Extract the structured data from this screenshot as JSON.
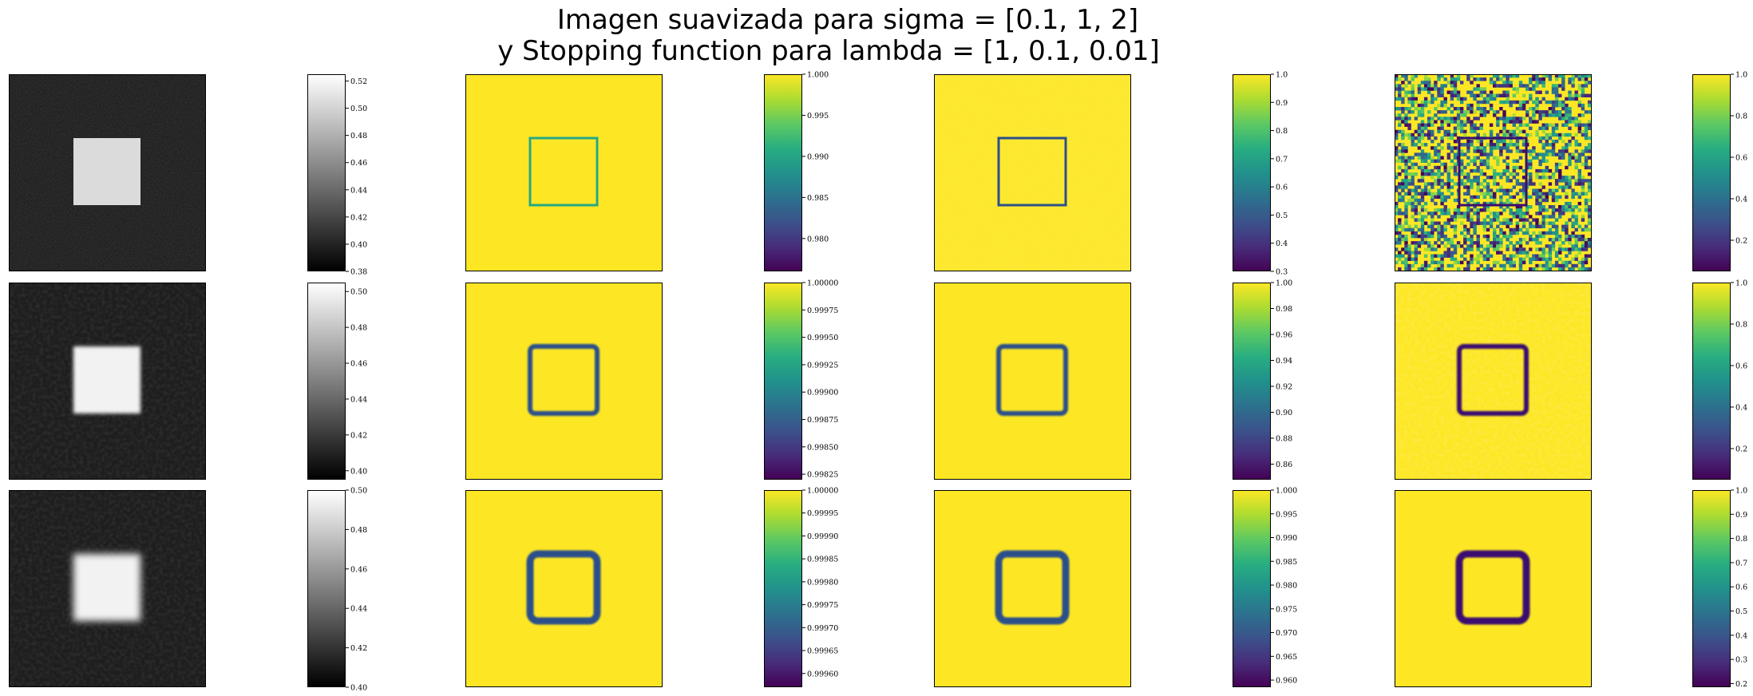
{
  "figure": {
    "title_line1": "Imagen suavizada para sigma = [0.1, 1, 2]",
    "title_line2": "y Stopping function para lambda = [1, 0.1, 0.01]"
  },
  "chart_data": {
    "type": "heatmap",
    "title": "Imagen suavizada para sigma = [0.1, 1, 2] y Stopping function para lambda = [1, 0.1, 0.01]",
    "sigma": [
      0.1,
      1,
      2
    ],
    "lambda": [
      1,
      0.1,
      0.01
    ],
    "rows": [
      {
        "sigma": 0.1,
        "panels": [
          {
            "kind": "smoothed_image",
            "cmap": "gray",
            "vmin": 0.38,
            "vmax": 0.525,
            "ticks": [
              "0.38",
              "0.40",
              "0.42",
              "0.44",
              "0.46",
              "0.48",
              "0.50",
              "0.52"
            ]
          },
          {
            "kind": "stopping_function",
            "lambda": 1,
            "cmap": "viridis",
            "vmin": 0.976,
            "vmax": 1.0,
            "ticks": [
              "0.980",
              "0.985",
              "0.990",
              "0.995",
              "1.000"
            ]
          },
          {
            "kind": "stopping_function",
            "lambda": 0.1,
            "cmap": "viridis",
            "vmin": 0.3,
            "vmax": 1.0,
            "ticks": [
              "0.3",
              "0.4",
              "0.5",
              "0.6",
              "0.7",
              "0.8",
              "0.9",
              "1.0"
            ]
          },
          {
            "kind": "stopping_function",
            "lambda": 0.01,
            "cmap": "viridis",
            "vmin": 0.05,
            "vmax": 1.0,
            "ticks": [
              "0.2",
              "0.4",
              "0.6",
              "0.8",
              "1.0"
            ]
          }
        ]
      },
      {
        "sigma": 1,
        "panels": [
          {
            "kind": "smoothed_image",
            "cmap": "gray",
            "vmin": 0.395,
            "vmax": 0.505,
            "ticks": [
              "0.40",
              "0.42",
              "0.44",
              "0.46",
              "0.48",
              "0.50"
            ]
          },
          {
            "kind": "stopping_function",
            "lambda": 1,
            "cmap": "viridis",
            "vmin": 0.9982,
            "vmax": 1.0,
            "ticks": [
              "0.99825",
              "0.99850",
              "0.99875",
              "0.99900",
              "0.99925",
              "0.99950",
              "0.99975",
              "1.00000"
            ]
          },
          {
            "kind": "stopping_function",
            "lambda": 0.1,
            "cmap": "viridis",
            "vmin": 0.848,
            "vmax": 1.0,
            "ticks": [
              "0.86",
              "0.88",
              "0.90",
              "0.92",
              "0.94",
              "0.96",
              "0.98",
              "1.00"
            ]
          },
          {
            "kind": "stopping_function",
            "lambda": 0.01,
            "cmap": "viridis",
            "vmin": 0.05,
            "vmax": 1.0,
            "ticks": [
              "0.2",
              "0.4",
              "0.6",
              "0.8",
              "1.0"
            ]
          }
        ]
      },
      {
        "sigma": 2,
        "panels": [
          {
            "kind": "smoothed_image",
            "cmap": "gray",
            "vmin": 0.4,
            "vmax": 0.5,
            "ticks": [
              "0.40",
              "0.42",
              "0.44",
              "0.46",
              "0.48",
              "0.50"
            ]
          },
          {
            "kind": "stopping_function",
            "lambda": 1,
            "cmap": "viridis",
            "vmin": 0.99957,
            "vmax": 1.0,
            "ticks": [
              "0.99960",
              "0.99965",
              "0.99970",
              "0.99975",
              "0.99980",
              "0.99985",
              "0.99990",
              "0.99995",
              "1.00000"
            ]
          },
          {
            "kind": "stopping_function",
            "lambda": 0.1,
            "cmap": "viridis",
            "vmin": 0.9585,
            "vmax": 1.0,
            "ticks": [
              "0.960",
              "0.965",
              "0.970",
              "0.975",
              "0.980",
              "0.985",
              "0.990",
              "0.995",
              "1.000"
            ]
          },
          {
            "kind": "stopping_function",
            "lambda": 0.01,
            "cmap": "viridis",
            "vmin": 0.185,
            "vmax": 1.0,
            "ticks": [
              "0.2",
              "0.3",
              "0.4",
              "0.5",
              "0.6",
              "0.7",
              "0.8",
              "0.9",
              "1.0"
            ]
          }
        ]
      }
    ]
  }
}
